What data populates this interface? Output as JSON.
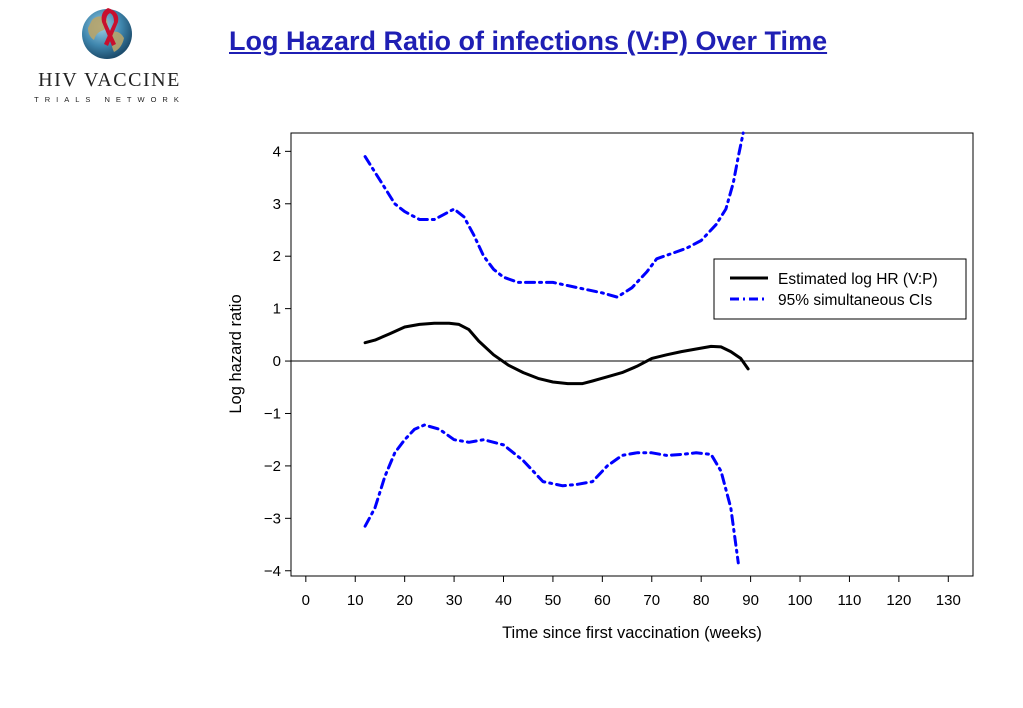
{
  "page": {
    "title": "Log Hazard Ratio of infections (V:P) Over Time"
  },
  "logo": {
    "name": "HIV VACCINE",
    "subtitle": "TRIALS NETWORK",
    "icon": "globe-ribbon-icon"
  },
  "chart_data": {
    "type": "line",
    "title": "",
    "xlabel": "Time since first vaccination (weeks)",
    "ylabel": "Log hazard ratio",
    "xlim": [
      -3,
      135
    ],
    "ylim": [
      -4.1,
      4.35
    ],
    "xticks": [
      0,
      10,
      20,
      30,
      40,
      50,
      60,
      70,
      80,
      90,
      100,
      110,
      120,
      130
    ],
    "yticks": [
      -4,
      -3,
      -2,
      -1,
      0,
      1,
      2,
      3,
      4
    ],
    "ytick_labels": [
      "−4",
      "−3",
      "−2",
      "−1",
      "0",
      "1",
      "2",
      "3",
      "4"
    ],
    "reference_line_y": 0,
    "grid": false,
    "legend_position": "right",
    "series": [
      {
        "name": "Estimated log HR (V:P)",
        "style": "solid",
        "color": "#000000",
        "x": [
          12,
          14,
          17,
          20,
          23,
          26,
          29,
          31,
          33,
          35,
          38,
          41,
          44,
          47,
          50,
          53,
          56,
          58,
          61,
          64,
          67,
          70,
          73,
          76,
          79,
          82,
          84,
          86,
          88,
          89.5
        ],
        "y": [
          0.35,
          0.4,
          0.52,
          0.65,
          0.7,
          0.72,
          0.72,
          0.7,
          0.6,
          0.38,
          0.12,
          -0.08,
          -0.22,
          -0.33,
          -0.4,
          -0.43,
          -0.43,
          -0.38,
          -0.3,
          -0.22,
          -0.1,
          0.05,
          0.12,
          0.18,
          0.23,
          0.28,
          0.27,
          0.18,
          0.05,
          -0.15
        ]
      },
      {
        "name": "95% simultaneous CIs",
        "style": "dashdot",
        "color": "#0000ff",
        "segments": [
          {
            "x": [
              12,
              14,
              16,
              18,
              20,
              23,
              26,
              28,
              30,
              32,
              34,
              36,
              38,
              40,
              43,
              46,
              50,
              55,
              60,
              63,
              66,
              69,
              71,
              74,
              77,
              80,
              83,
              85,
              86.5,
              87.5,
              88.5
            ],
            "y": [
              3.9,
              3.6,
              3.3,
              3.0,
              2.85,
              2.7,
              2.7,
              2.8,
              2.9,
              2.75,
              2.4,
              2.0,
              1.75,
              1.6,
              1.5,
              1.5,
              1.5,
              1.4,
              1.3,
              1.22,
              1.4,
              1.7,
              1.95,
              2.05,
              2.15,
              2.3,
              2.6,
              2.9,
              3.4,
              3.9,
              4.35
            ]
          },
          {
            "x": [
              12,
              14,
              16,
              18,
              20,
              22,
              24,
              27,
              30,
              33,
              36,
              40,
              44,
              48,
              52,
              55,
              58,
              61,
              64,
              67,
              70,
              73,
              76,
              79,
              82,
              84,
              86,
              87.5
            ],
            "y": [
              -3.15,
              -2.8,
              -2.2,
              -1.75,
              -1.5,
              -1.3,
              -1.22,
              -1.3,
              -1.5,
              -1.55,
              -1.5,
              -1.6,
              -1.9,
              -2.3,
              -2.38,
              -2.35,
              -2.3,
              -2.0,
              -1.8,
              -1.75,
              -1.75,
              -1.8,
              -1.78,
              -1.75,
              -1.78,
              -2.1,
              -2.8,
              -3.85
            ]
          }
        ]
      }
    ]
  }
}
